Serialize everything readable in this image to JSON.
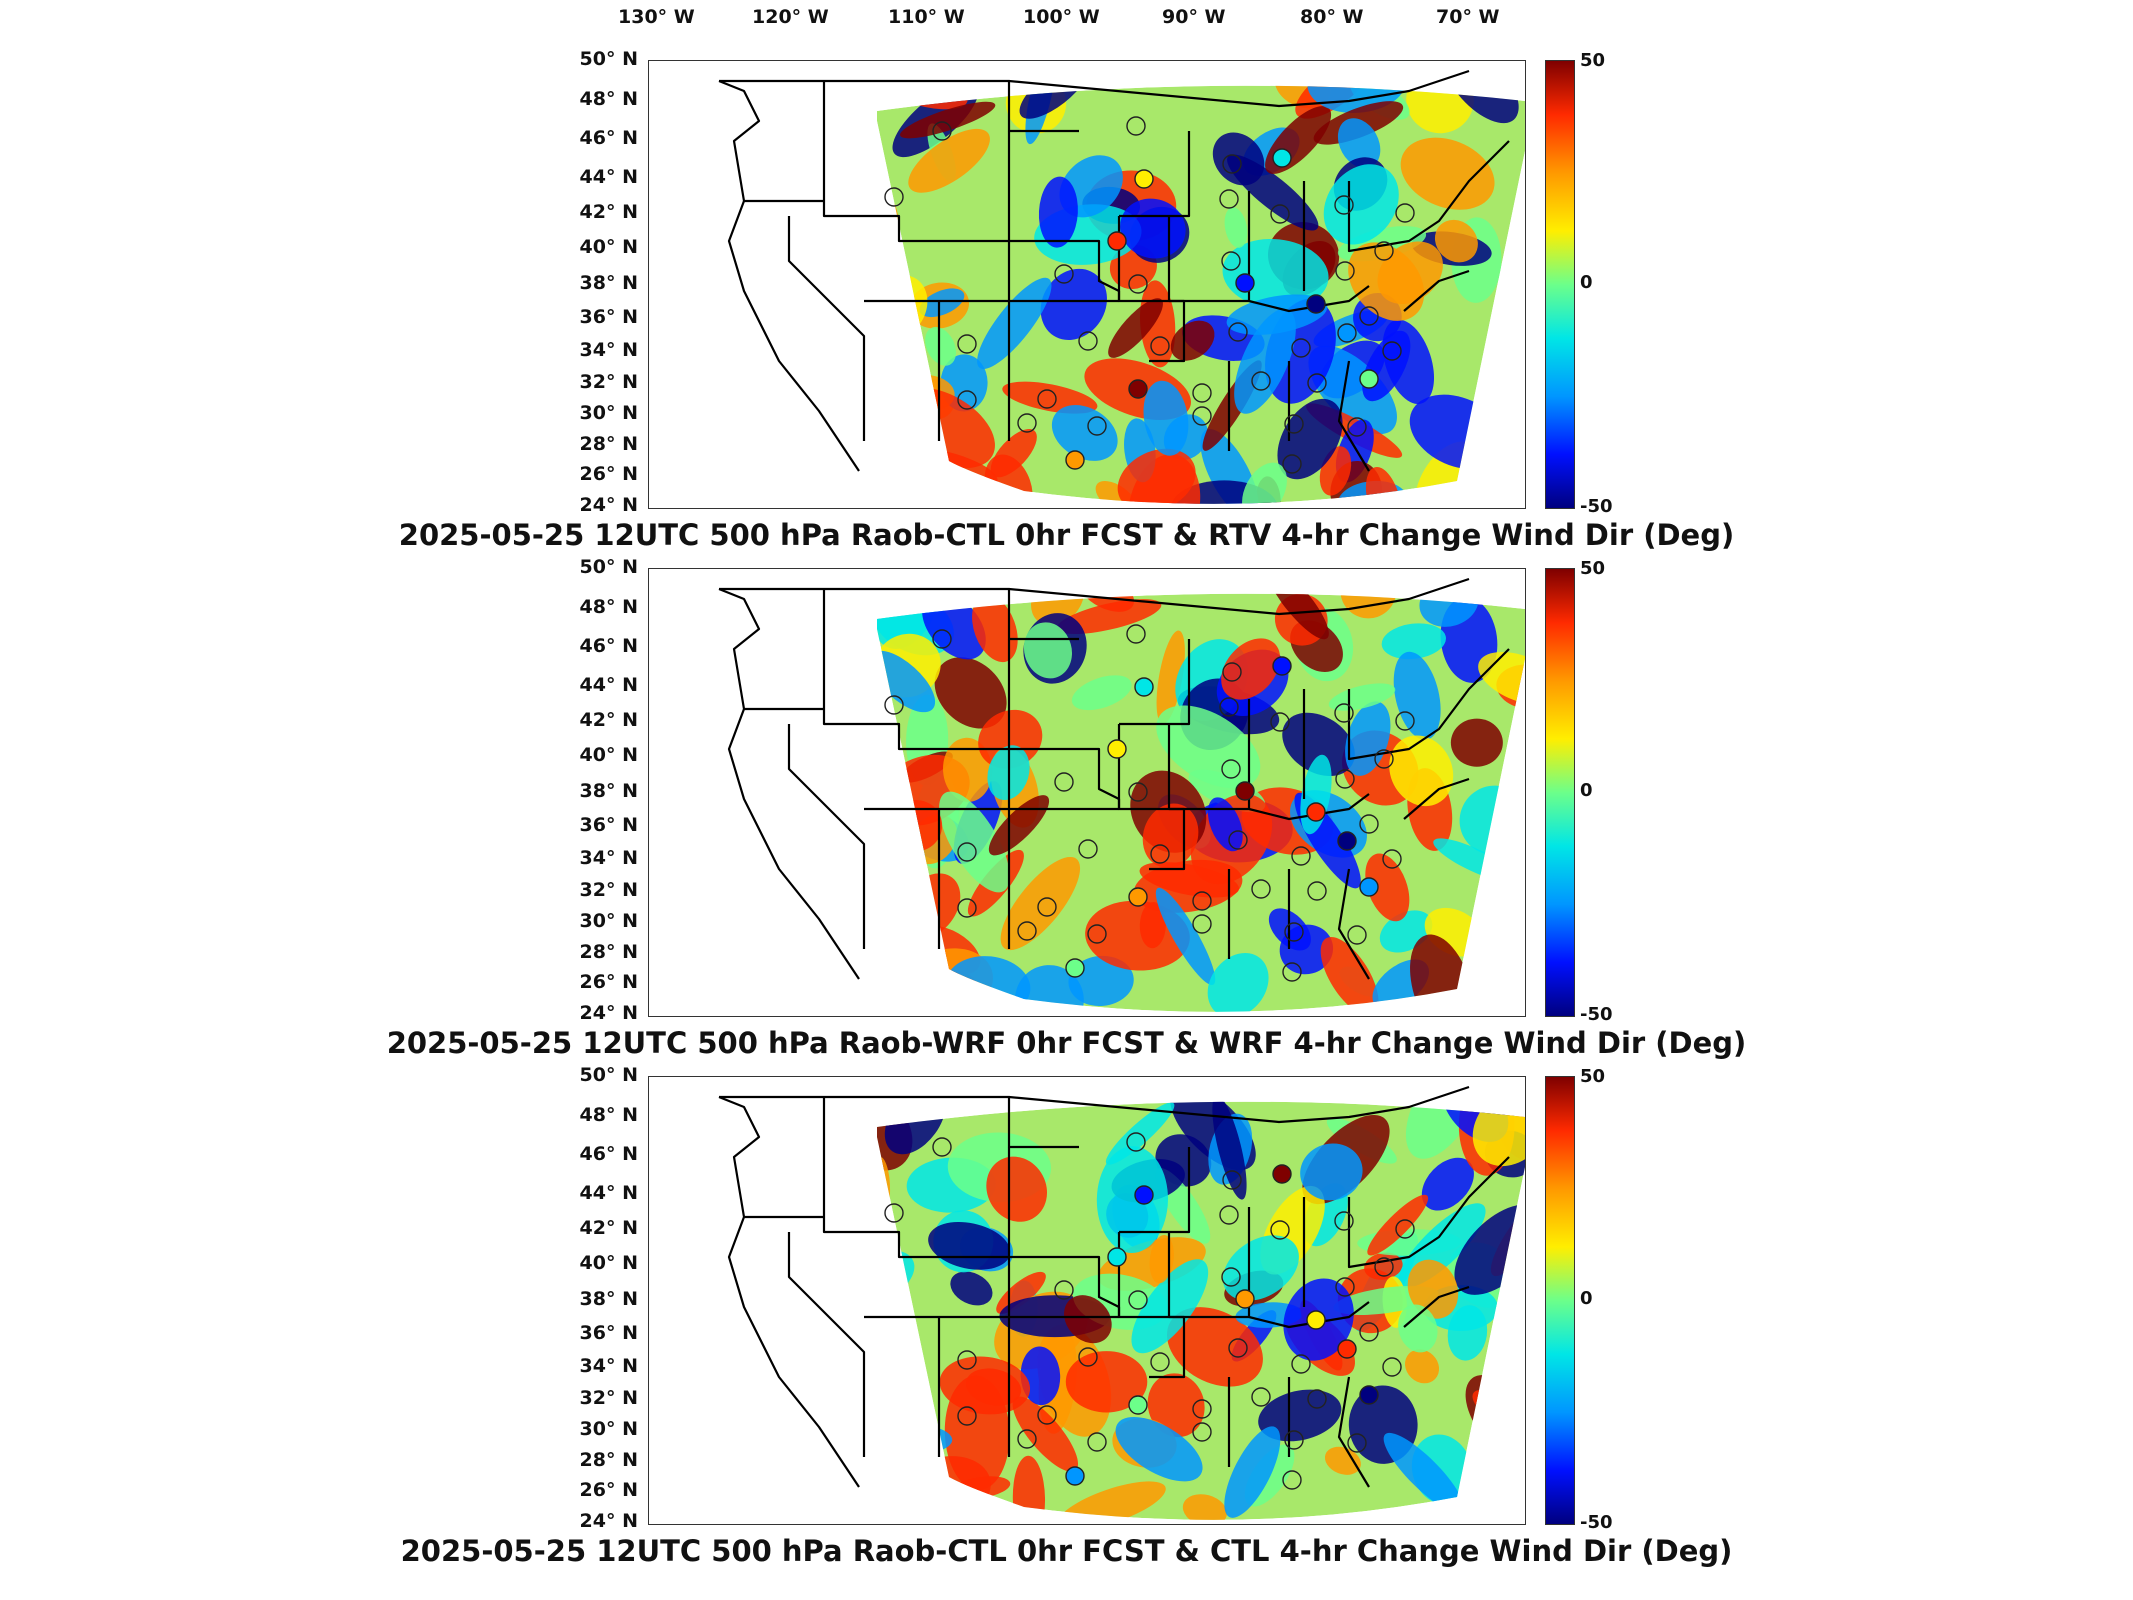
{
  "lon_labels": [
    "130° W",
    "120° W",
    "110° W",
    "100° W",
    "90° W",
    "80° W",
    "70° W"
  ],
  "lat_labels": [
    "50° N",
    "48° N",
    "46° N",
    "44° N",
    "42° N",
    "40° N",
    "38° N",
    "36° N",
    "34° N",
    "32° N",
    "30° N",
    "28° N",
    "26° N",
    "24° N"
  ],
  "colorbar": {
    "max": "50",
    "mid": "0",
    "min": "-50"
  },
  "colorscale": [
    "#7f0000",
    "#ff2a00",
    "#ff9900",
    "#ffee00",
    "#6cff8a",
    "#00e6e6",
    "#0096ff",
    "#0010ff",
    "#00007f"
  ],
  "panels": [
    {
      "title": "2025-05-25 12UTC 500 hPa Raob-CTL 0hr FCST & RTV 4-hr Change Wind Dir (Deg)"
    },
    {
      "title": "2025-05-25 12UTC 500 hPa Raob-WRF 0hr FCST & WRF 4-hr Change Wind Dir (Deg)"
    },
    {
      "title": "2025-05-25 12UTC 500 hPa Raob-CTL 0hr FCST & CTL 4-hr Change Wind Dir (Deg)"
    }
  ]
}
